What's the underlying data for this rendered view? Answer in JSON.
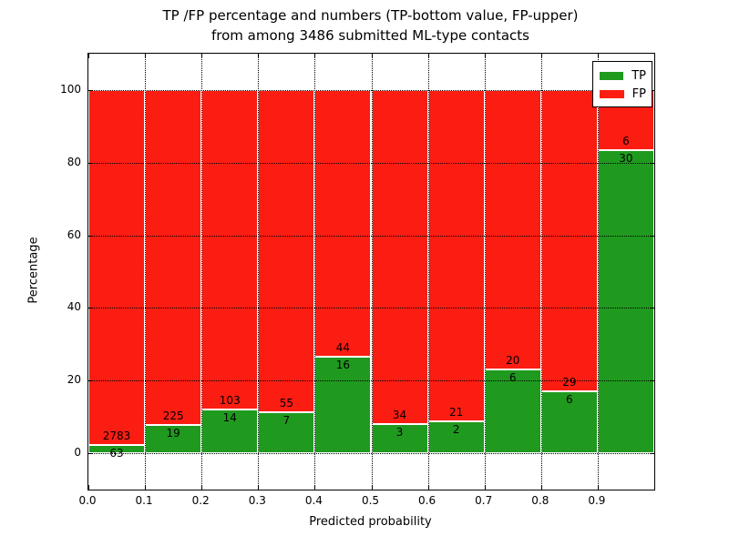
{
  "title": {
    "line1": "TP /FP percentage and numbers (TP-bottom value, FP-upper)",
    "line2": "from among 3486 submitted ML-type contacts"
  },
  "axes": {
    "xlabel": "Predicted probability",
    "ylabel": "Percentage",
    "xlim": [
      0.0,
      1.0
    ],
    "ylim": [
      -10,
      110
    ],
    "grid_style": "dotted",
    "xticks": [
      {
        "v": 0.0,
        "label": "0.0"
      },
      {
        "v": 0.1,
        "label": "0.1"
      },
      {
        "v": 0.2,
        "label": "0.2"
      },
      {
        "v": 0.3,
        "label": "0.3"
      },
      {
        "v": 0.4,
        "label": "0.4"
      },
      {
        "v": 0.5,
        "label": "0.5"
      },
      {
        "v": 0.6,
        "label": "0.6"
      },
      {
        "v": 0.7,
        "label": "0.7"
      },
      {
        "v": 0.8,
        "label": "0.8"
      },
      {
        "v": 0.9,
        "label": "0.9"
      }
    ],
    "yticks": [
      {
        "v": 0,
        "label": "0"
      },
      {
        "v": 20,
        "label": "20"
      },
      {
        "v": 40,
        "label": "40"
      },
      {
        "v": 60,
        "label": "60"
      },
      {
        "v": 80,
        "label": "80"
      },
      {
        "v": 100,
        "label": "100"
      }
    ]
  },
  "legend": {
    "position": "upper right",
    "items": [
      {
        "label": "TP",
        "color": "#1f9a1f"
      },
      {
        "label": "FP",
        "color": "#fb1d12"
      }
    ]
  },
  "chart_data": {
    "type": "bar",
    "stacked": true,
    "normalized_to_percent": true,
    "title": "TP /FP percentage and numbers (TP-bottom value, FP-upper) from among 3486 submitted ML-type contacts",
    "xlabel": "Predicted probability",
    "ylabel": "Percentage",
    "total_contacts": 3486,
    "bin_edges": [
      0.0,
      0.1,
      0.2,
      0.3,
      0.4,
      0.5,
      0.6,
      0.7,
      0.8,
      0.9,
      1.0
    ],
    "series": [
      {
        "name": "TP",
        "color": "#1f9a1f",
        "counts": [
          63,
          19,
          14,
          7,
          16,
          3,
          2,
          6,
          6,
          30
        ]
      },
      {
        "name": "FP",
        "color": "#fb1d12",
        "counts": [
          2783,
          225,
          103,
          55,
          44,
          34,
          21,
          20,
          29,
          6
        ]
      }
    ],
    "bar_edge_color": "#ffffff",
    "xlim": [
      0.0,
      1.0
    ],
    "ylim": [
      -10,
      110
    ],
    "grid": "dotted",
    "legend_position": "upper right"
  }
}
